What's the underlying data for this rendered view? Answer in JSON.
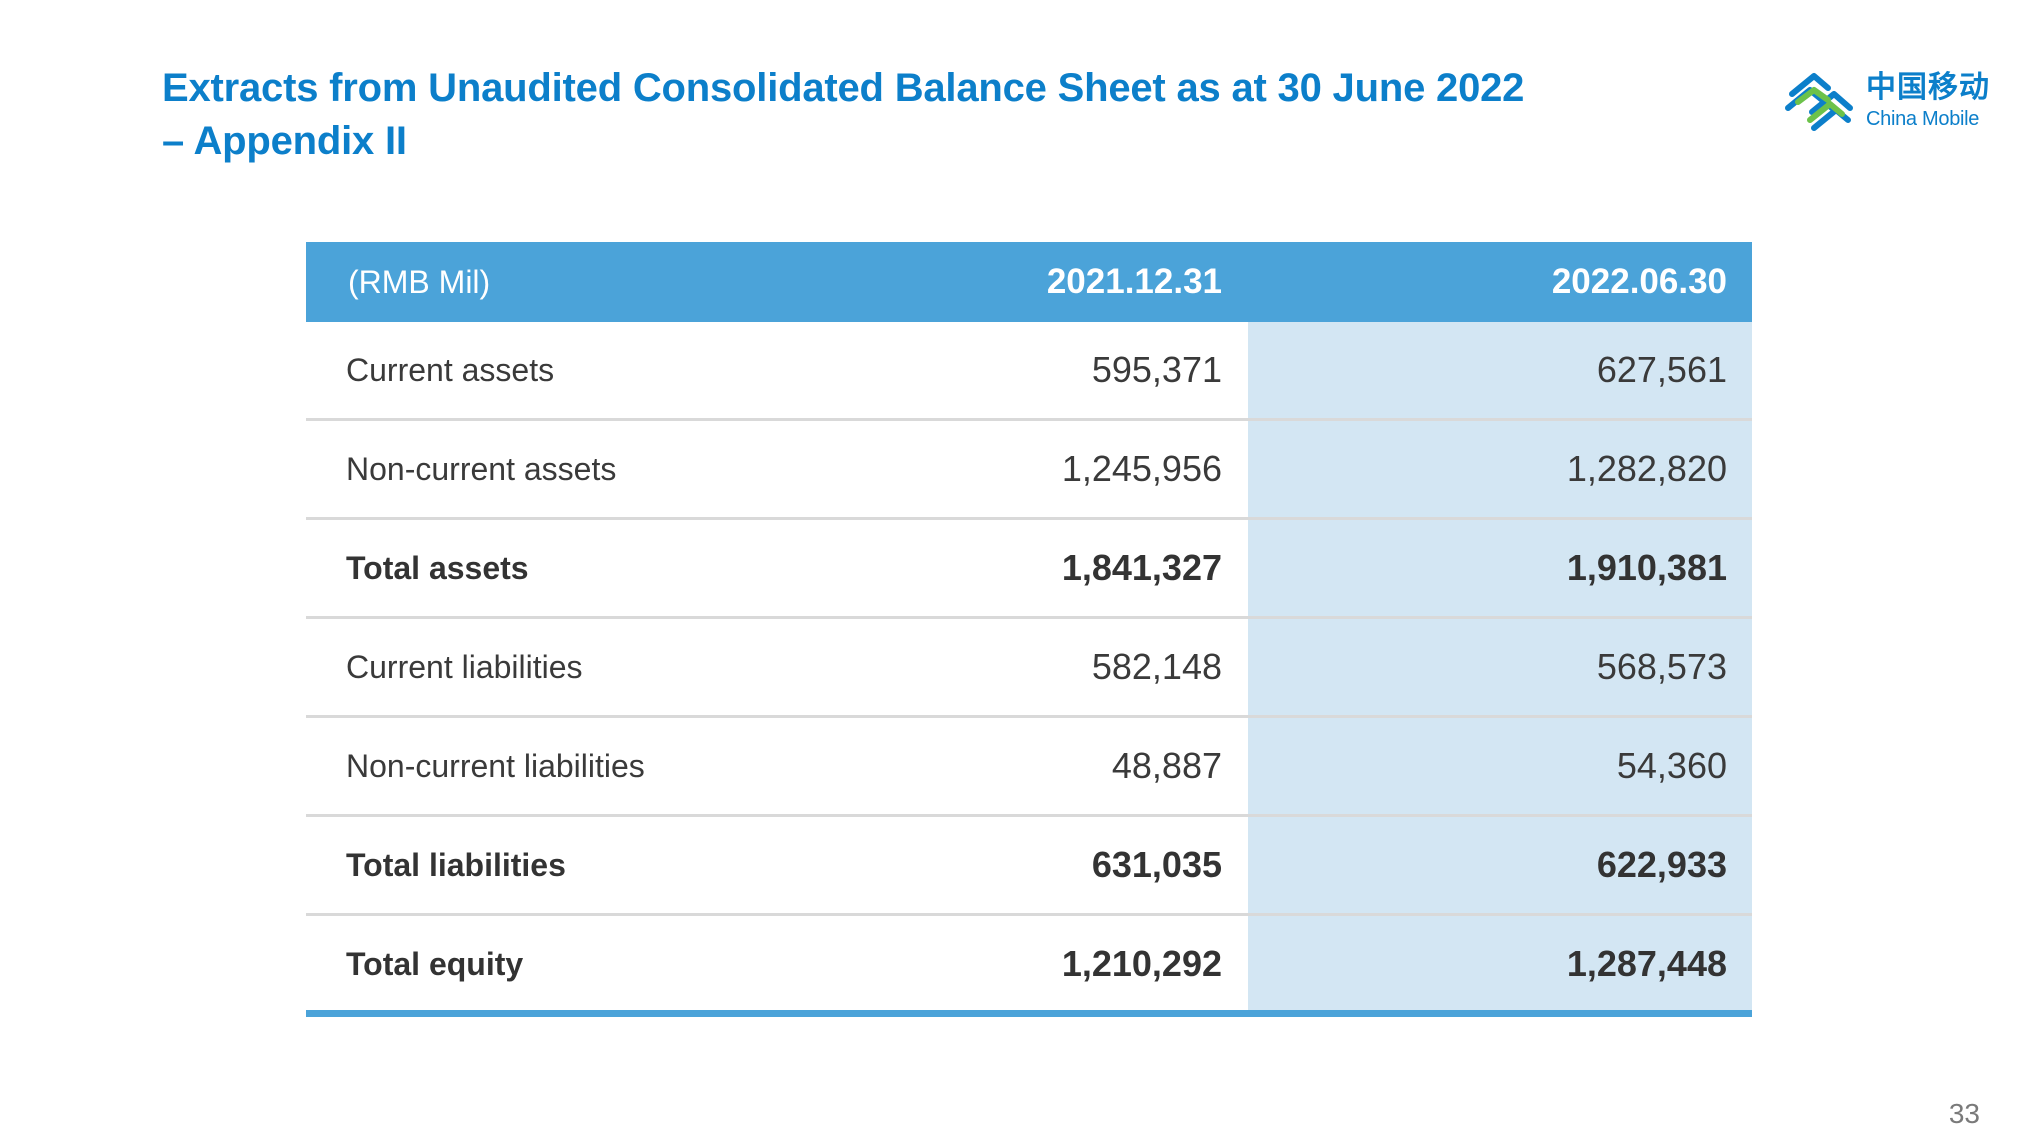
{
  "title": {
    "line1": "Extracts from Unaudited Consolidated Balance Sheet as at 30 June 2022",
    "line2": "– Appendix II"
  },
  "logo": {
    "chinese_name": "中国移动",
    "english_name": "China Mobile",
    "icon": "china-mobile-logo-icon",
    "color": "#0c7fca"
  },
  "table": {
    "header": {
      "unit_label": "(RMB Mil)",
      "col1": "2021.12.31",
      "col2": "2022.06.30"
    },
    "rows": [
      {
        "label": "Current assets",
        "v1": "595,371",
        "v2": "627,561",
        "bold": false
      },
      {
        "label": "Non-current assets",
        "v1": "1,245,956",
        "v2": "1,282,820",
        "bold": false
      },
      {
        "label": "Total assets",
        "v1": "1,841,327",
        "v2": "1,910,381",
        "bold": true
      },
      {
        "label": "Current liabilities",
        "v1": "582,148",
        "v2": "568,573",
        "bold": false
      },
      {
        "label": "Non-current liabilities",
        "v1": "48,887",
        "v2": "54,360",
        "bold": false
      },
      {
        "label": "Total liabilities",
        "v1": "631,035",
        "v2": "622,933",
        "bold": true
      },
      {
        "label": "Total equity",
        "v1": "1,210,292",
        "v2": "1,287,448",
        "bold": true
      }
    ],
    "header_color": "#4ba3d9",
    "shade_color": "#d3e6f3"
  },
  "page_number": "33"
}
